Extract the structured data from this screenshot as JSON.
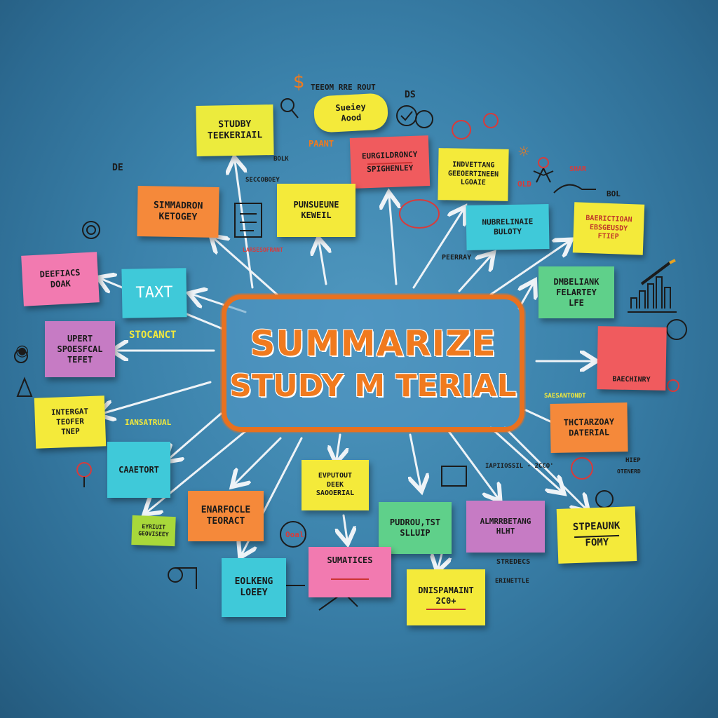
{
  "title": {
    "line1": "SUMMARIZE",
    "line2": "STUDY M TERIAL"
  },
  "colors": {
    "background": "#3b82ab",
    "title_orange": "#f07a1e",
    "yellow": "#f4ea3a",
    "pink": "#f27ab0",
    "orange": "#f5893a",
    "green": "#5fd08a",
    "cyan": "#3fc9d9",
    "purple": "#c67bc4",
    "red": "#f05b5e"
  },
  "notes": {
    "n1": [
      "STUDBY",
      "TEEKERIAIL"
    ],
    "n2": [
      "Sueiey",
      "Aood"
    ],
    "n3": [
      "EURGILDRONCY",
      "SPIGHENLEY"
    ],
    "n4": [
      "INDVETTANG",
      "GEEOERTINEEN",
      "LGOAIE"
    ],
    "n5": [
      "SIMMADRON",
      "KETOGEY"
    ],
    "n6": [
      "PUNSUEUNE",
      "KEWEIL"
    ],
    "n7": [
      "NUBRELINAIE",
      "BULOTY"
    ],
    "n8": [
      "BAERICTIOAN",
      "EBSGEUSDY",
      "FTIEP"
    ],
    "n9": [
      "DEEFIACS",
      "DOAK"
    ],
    "n10": [
      "TAXT"
    ],
    "n11": [
      "DMBELIANK",
      "FELARTEY",
      "LFE"
    ],
    "n12": [
      "UPERT",
      "SPOESFCAL",
      "TEFET"
    ],
    "n13": [
      "BAECHINRY"
    ],
    "n14": [
      "INTERGAT",
      "TEOFER",
      "TNEP"
    ],
    "n15": [
      "THCTARZOAY",
      "DATERIAL"
    ],
    "n16": [
      "CAAETORT"
    ],
    "n17": [
      "EVPUTOUT",
      "DEEK",
      "SAOOERIAL"
    ],
    "n18": [
      "EYRIUIT",
      "GEOVISEEY"
    ],
    "n19": [
      "ENARFOCLE",
      "TEORACT"
    ],
    "n20": [
      "PUDROU,TST",
      "SLLUIP"
    ],
    "n21": [
      "ALMRRBETANG",
      "HLHT"
    ],
    "n22": [
      "STPEAUNK",
      "FOMY"
    ],
    "n23": [
      "SUMATICES"
    ],
    "n24": [
      "EOLKENG",
      "LOEEY"
    ],
    "n25": [
      "DNISPAMAINT",
      "2C0+"
    ]
  },
  "doodles": {
    "d1": "TEEOM RRE ROUT",
    "d2": "DS",
    "d3": "PAANT",
    "d4": "DE",
    "d5": "SECCOBOEY",
    "d6": "LARSESOFRANT",
    "d7": "BOL",
    "d8": "OLD",
    "d9": "SHAR",
    "d10": "PEERRAY",
    "d11": "STOCANCT",
    "d12": "IANSATRUAL",
    "d13": "SAESANTONDT",
    "d14": "IAPIIOSSIL - 2CCO'",
    "d15": "HIEP",
    "d16": "OTENERD",
    "d17": "STREDECS",
    "d18": "ERINETTLE",
    "d19": "Ooal",
    "d20": "BOLK"
  },
  "icons": [
    "dollar-sign-icon",
    "bulb-icon",
    "magnifier-icon",
    "check-circle-icon",
    "target-icon",
    "checklist-icon",
    "bar-chart-icon",
    "exclamation-icon",
    "speech-bubble-icon",
    "stick-figure-icon",
    "bomb-icon",
    "pencil-icon"
  ]
}
